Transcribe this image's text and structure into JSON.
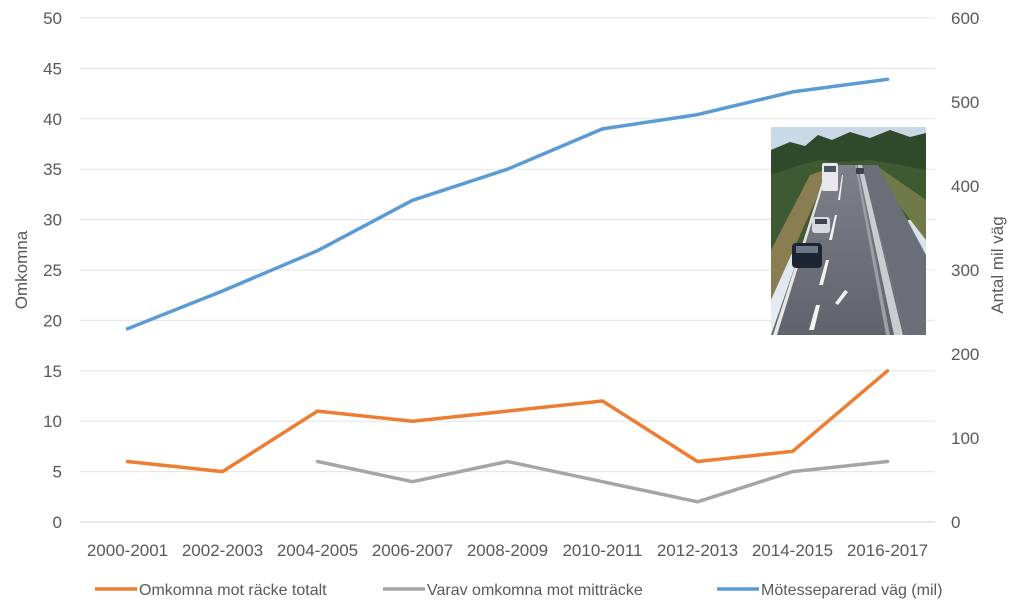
{
  "chart_data": {
    "type": "line",
    "title": "",
    "categories": [
      "2000-2001",
      "2002-2003",
      "2004-2005",
      "2006-2007",
      "2008-2009",
      "2010-2011",
      "2012-2013",
      "2014-2015",
      "2016-2017"
    ],
    "ylabel_left": "Omkomna",
    "ylabel_right": "Antal mil väg",
    "ylim_left": [
      0,
      50
    ],
    "yticks_left": [
      "0",
      "5",
      "10",
      "15",
      "20",
      "25",
      "30",
      "35",
      "40",
      "45",
      "50"
    ],
    "ylim_right": [
      0,
      600
    ],
    "yticks_right": [
      "0",
      "100",
      "200",
      "300",
      "400",
      "500",
      "600"
    ],
    "grid": true,
    "legend_position": "bottom",
    "series": [
      {
        "name": "Omkomna  mot räcke totalt",
        "axis": "left",
        "color": "#ED7D31",
        "values": [
          6,
          5,
          11,
          10,
          11,
          12,
          6,
          7,
          15
        ]
      },
      {
        "name": "Varav omkomna mot mitträcke",
        "axis": "left",
        "color": "#A5A5A5",
        "values": [
          null,
          null,
          6,
          4,
          6,
          4,
          2,
          5,
          6
        ]
      },
      {
        "name": "Mötesseparerad väg (mil)",
        "axis": "right",
        "color": "#5B9BD5",
        "values": [
          230,
          275,
          323,
          383,
          420,
          468,
          485,
          512,
          527
        ]
      }
    ],
    "image": "road-photo"
  }
}
